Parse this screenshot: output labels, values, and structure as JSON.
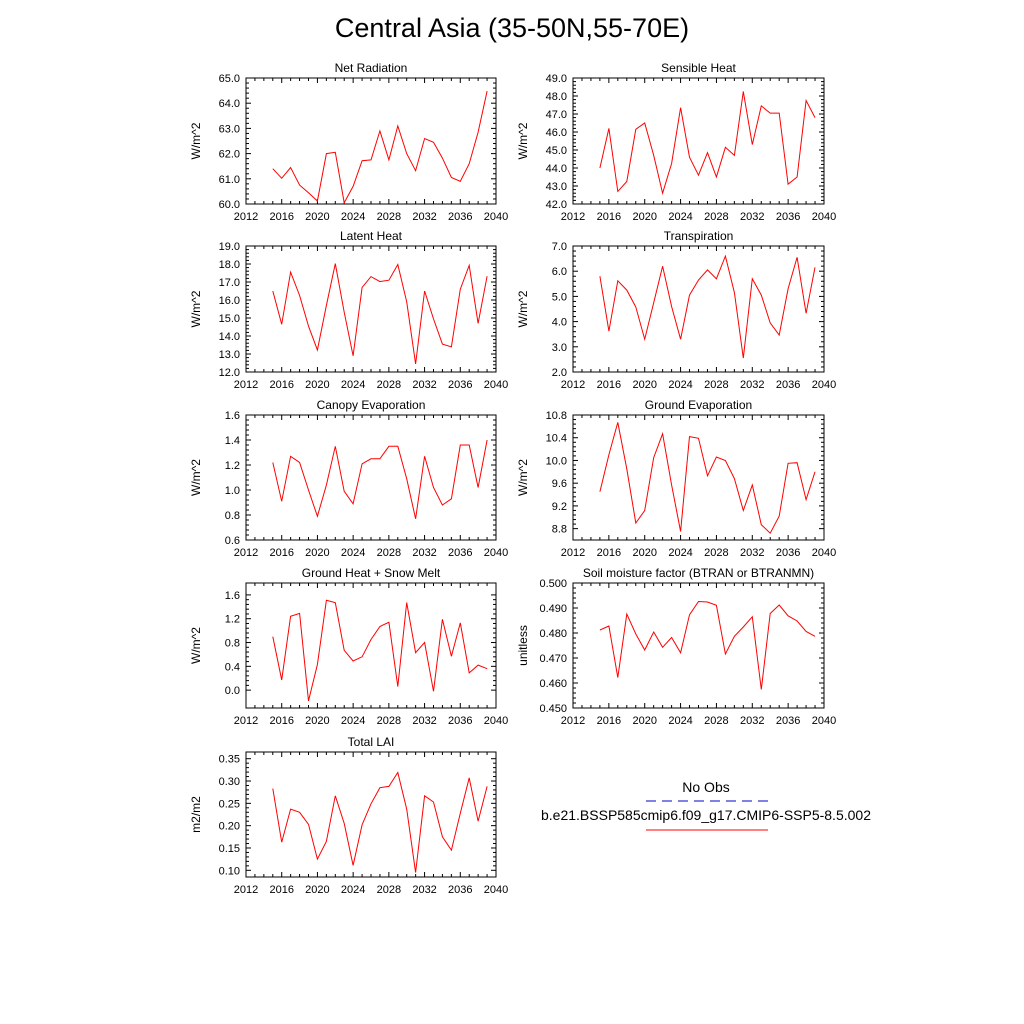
{
  "title": "Central Asia (35-50N,55-70E)",
  "colors": {
    "model_line": "#ff0000",
    "obs_line": "#0000cc",
    "axes": "#000000"
  },
  "legend": {
    "obs_label": "No Obs",
    "model_label": "b.e21.BSSP585cmip6.f09_g17.CMIP6-SSP5-8.5.002"
  },
  "chart_data": [
    {
      "type": "line",
      "title": "Net Radiation",
      "ylabel": "W/m^2",
      "xlim": [
        2012,
        2040
      ],
      "ylim": [
        60.0,
        65.0
      ],
      "xticks": [
        2012,
        2016,
        2020,
        2024,
        2028,
        2032,
        2036,
        2040
      ],
      "xtick_labels": [
        "2012",
        "2016",
        "2020",
        "2024",
        "2028",
        "2032",
        "2036",
        "2040"
      ],
      "yticks": [
        60.0,
        61.0,
        62.0,
        63.0,
        64.0,
        65.0
      ],
      "ytick_labels": [
        "60.0",
        "61.0",
        "62.0",
        "63.0",
        "64.0",
        "65.0"
      ],
      "series": [
        {
          "name": "b.e21.BSSP585cmip6.f09_g17.CMIP6-SSP5-8.5.002",
          "x": [
            2015,
            2016,
            2017,
            2018,
            2019,
            2020,
            2021,
            2022,
            2023,
            2024,
            2025,
            2026,
            2027,
            2028,
            2029,
            2030,
            2031,
            2032,
            2033,
            2034,
            2035,
            2036,
            2037,
            2038,
            2039
          ],
          "y": [
            61.4,
            61.02,
            61.45,
            60.75,
            60.45,
            60.12,
            62.0,
            62.05,
            60.05,
            60.7,
            61.72,
            61.75,
            62.9,
            61.75,
            63.1,
            62.0,
            61.32,
            62.6,
            62.45,
            61.82,
            61.05,
            60.9,
            61.6,
            62.85,
            64.48
          ]
        }
      ]
    },
    {
      "type": "line",
      "title": "Sensible Heat",
      "ylabel": "W/m^2",
      "xlim": [
        2012,
        2040
      ],
      "ylim": [
        42.0,
        49.0
      ],
      "xticks": [
        2012,
        2016,
        2020,
        2024,
        2028,
        2032,
        2036,
        2040
      ],
      "xtick_labels": [
        "2012",
        "2016",
        "2020",
        "2024",
        "2028",
        "2032",
        "2036",
        "2040"
      ],
      "yticks": [
        42.0,
        43.0,
        44.0,
        45.0,
        46.0,
        47.0,
        48.0,
        49.0
      ],
      "ytick_labels": [
        "42.0",
        "43.0",
        "44.0",
        "45.0",
        "46.0",
        "47.0",
        "48.0",
        "49.0"
      ],
      "series": [
        {
          "name": "b.e21.BSSP585cmip6.f09_g17.CMIP6-SSP5-8.5.002",
          "x": [
            2015,
            2016,
            2017,
            2018,
            2019,
            2020,
            2021,
            2022,
            2023,
            2024,
            2025,
            2026,
            2027,
            2028,
            2029,
            2030,
            2031,
            2032,
            2033,
            2034,
            2035,
            2036,
            2037,
            2038,
            2039
          ],
          "y": [
            44.0,
            46.2,
            42.7,
            43.25,
            46.15,
            46.5,
            44.7,
            42.6,
            44.25,
            47.35,
            44.6,
            43.6,
            44.85,
            43.5,
            45.15,
            44.7,
            48.25,
            45.3,
            47.45,
            47.05,
            47.05,
            43.1,
            43.5,
            47.75,
            46.8
          ]
        }
      ]
    },
    {
      "type": "line",
      "title": "Latent Heat",
      "ylabel": "W/m^2",
      "xlim": [
        2012,
        2040
      ],
      "ylim": [
        12.0,
        19.0
      ],
      "xticks": [
        2012,
        2016,
        2020,
        2024,
        2028,
        2032,
        2036,
        2040
      ],
      "xtick_labels": [
        "2012",
        "2016",
        "2020",
        "2024",
        "2028",
        "2032",
        "2036",
        "2040"
      ],
      "yticks": [
        12.0,
        13.0,
        14.0,
        15.0,
        16.0,
        17.0,
        18.0,
        19.0
      ],
      "ytick_labels": [
        "12.0",
        "13.0",
        "14.0",
        "15.0",
        "16.0",
        "17.0",
        "18.0",
        "19.0"
      ],
      "series": [
        {
          "name": "b.e21.BSSP585cmip6.f09_g17.CMIP6-SSP5-8.5.002",
          "x": [
            2015,
            2016,
            2017,
            2018,
            2019,
            2020,
            2021,
            2022,
            2023,
            2024,
            2025,
            2026,
            2027,
            2028,
            2029,
            2030,
            2031,
            2032,
            2033,
            2034,
            2035,
            2036,
            2037,
            2038,
            2039
          ],
          "y": [
            16.5,
            14.65,
            17.55,
            16.25,
            14.55,
            13.22,
            15.7,
            18.02,
            15.32,
            12.9,
            16.7,
            17.3,
            17.02,
            17.1,
            17.97,
            15.9,
            12.45,
            16.5,
            14.95,
            13.55,
            13.4,
            16.6,
            17.93,
            14.7,
            17.32
          ]
        }
      ]
    },
    {
      "type": "line",
      "title": "Transpiration",
      "ylabel": "W/m^2",
      "xlim": [
        2012,
        2040
      ],
      "ylim": [
        2.0,
        7.0
      ],
      "xticks": [
        2012,
        2016,
        2020,
        2024,
        2028,
        2032,
        2036,
        2040
      ],
      "xtick_labels": [
        "2012",
        "2016",
        "2020",
        "2024",
        "2028",
        "2032",
        "2036",
        "2040"
      ],
      "yticks": [
        2.0,
        3.0,
        4.0,
        5.0,
        6.0,
        7.0
      ],
      "ytick_labels": [
        "2.0",
        "3.0",
        "4.0",
        "5.0",
        "6.0",
        "7.0"
      ],
      "series": [
        {
          "name": "b.e21.BSSP585cmip6.f09_g17.CMIP6-SSP5-8.5.002",
          "x": [
            2015,
            2016,
            2017,
            2018,
            2019,
            2020,
            2021,
            2022,
            2023,
            2024,
            2025,
            2026,
            2027,
            2028,
            2029,
            2030,
            2031,
            2032,
            2033,
            2034,
            2035,
            2036,
            2037,
            2038,
            2039
          ],
          "y": [
            5.8,
            3.62,
            5.62,
            5.25,
            4.58,
            3.3,
            4.75,
            6.2,
            4.6,
            3.3,
            5.05,
            5.65,
            6.05,
            5.7,
            6.6,
            5.15,
            2.55,
            5.7,
            5.05,
            3.95,
            3.47,
            5.3,
            6.55,
            4.33,
            6.15
          ]
        }
      ]
    },
    {
      "type": "line",
      "title": "Canopy Evaporation",
      "ylabel": "W/m^2",
      "xlim": [
        2012,
        2040
      ],
      "ylim": [
        0.6,
        1.6
      ],
      "xticks": [
        2012,
        2016,
        2020,
        2024,
        2028,
        2032,
        2036,
        2040
      ],
      "xtick_labels": [
        "2012",
        "2016",
        "2020",
        "2024",
        "2028",
        "2032",
        "2036",
        "2040"
      ],
      "yticks": [
        0.6,
        0.8,
        1.0,
        1.2,
        1.4,
        1.6
      ],
      "ytick_labels": [
        "0.6",
        "0.8",
        "1.0",
        "1.2",
        "1.4",
        "1.6"
      ],
      "series": [
        {
          "name": "b.e21.BSSP585cmip6.f09_g17.CMIP6-SSP5-8.5.002",
          "x": [
            2015,
            2016,
            2017,
            2018,
            2019,
            2020,
            2021,
            2022,
            2023,
            2024,
            2025,
            2026,
            2027,
            2028,
            2029,
            2030,
            2031,
            2032,
            2033,
            2034,
            2035,
            2036,
            2037,
            2038,
            2039
          ],
          "y": [
            1.22,
            0.91,
            1.27,
            1.22,
            1.0,
            0.79,
            1.04,
            1.35,
            0.99,
            0.89,
            1.21,
            1.25,
            1.25,
            1.35,
            1.35,
            1.09,
            0.77,
            1.27,
            1.02,
            0.88,
            0.93,
            1.36,
            1.36,
            1.02,
            1.4
          ]
        }
      ]
    },
    {
      "type": "line",
      "title": "Ground Evaporation",
      "ylabel": "W/m^2",
      "xlim": [
        2012,
        2040
      ],
      "ylim": [
        8.6,
        10.8
      ],
      "xticks": [
        2012,
        2016,
        2020,
        2024,
        2028,
        2032,
        2036,
        2040
      ],
      "xtick_labels": [
        "2012",
        "2016",
        "2020",
        "2024",
        "2028",
        "2032",
        "2036",
        "2040"
      ],
      "yticks": [
        8.8,
        9.2,
        9.6,
        10.0,
        10.4,
        10.8
      ],
      "ytick_labels": [
        "8.8",
        "9.2",
        "9.6",
        "10.0",
        "10.4",
        "10.8"
      ],
      "series": [
        {
          "name": "b.e21.BSSP585cmip6.f09_g17.CMIP6-SSP5-8.5.002",
          "x": [
            2015,
            2016,
            2017,
            2018,
            2019,
            2020,
            2021,
            2022,
            2023,
            2024,
            2025,
            2026,
            2027,
            2028,
            2029,
            2030,
            2031,
            2032,
            2033,
            2034,
            2035,
            2036,
            2037,
            2038,
            2039
          ],
          "y": [
            9.45,
            10.1,
            10.67,
            9.85,
            8.9,
            9.12,
            10.05,
            10.47,
            9.57,
            8.75,
            10.42,
            10.39,
            9.73,
            10.06,
            10.0,
            9.68,
            9.12,
            9.57,
            8.87,
            8.72,
            9.02,
            9.95,
            9.96,
            9.31,
            9.8
          ]
        }
      ]
    },
    {
      "type": "line",
      "title": "Ground Heat + Snow Melt",
      "ylabel": "W/m^2",
      "xlim": [
        2012,
        2040
      ],
      "ylim": [
        -0.3,
        1.8
      ],
      "xticks": [
        2012,
        2016,
        2020,
        2024,
        2028,
        2032,
        2036,
        2040
      ],
      "xtick_labels": [
        "2012",
        "2016",
        "2020",
        "2024",
        "2028",
        "2032",
        "2036",
        "2040"
      ],
      "yticks": [
        0.0,
        0.4,
        0.8,
        1.2,
        1.6
      ],
      "ytick_labels": [
        "0.0",
        "0.4",
        "0.8",
        "1.2",
        "1.6"
      ],
      "series": [
        {
          "name": "b.e21.BSSP585cmip6.f09_g17.CMIP6-SSP5-8.5.002",
          "x": [
            2015,
            2016,
            2017,
            2018,
            2019,
            2020,
            2021,
            2022,
            2023,
            2024,
            2025,
            2026,
            2027,
            2028,
            2029,
            2030,
            2031,
            2032,
            2033,
            2034,
            2035,
            2036,
            2037,
            2038,
            2039
          ],
          "y": [
            0.9,
            0.17,
            1.24,
            1.29,
            -0.18,
            0.43,
            1.51,
            1.47,
            0.67,
            0.49,
            0.56,
            0.85,
            1.07,
            1.14,
            0.06,
            1.47,
            0.63,
            0.8,
            -0.02,
            1.19,
            0.57,
            1.13,
            0.29,
            0.42,
            0.36
          ]
        }
      ]
    },
    {
      "type": "line",
      "title": "Soil moisture factor (BTRAN or BTRANMN)",
      "ylabel": "unitless",
      "xlim": [
        2012,
        2040
      ],
      "ylim": [
        0.45,
        0.5
      ],
      "xticks": [
        2012,
        2016,
        2020,
        2024,
        2028,
        2032,
        2036,
        2040
      ],
      "xtick_labels": [
        "2012",
        "2016",
        "2020",
        "2024",
        "2028",
        "2032",
        "2036",
        "2040"
      ],
      "yticks": [
        0.45,
        0.46,
        0.47,
        0.48,
        0.49,
        0.5
      ],
      "ytick_labels": [
        "0.450",
        "0.460",
        "0.470",
        "0.480",
        "0.490",
        "0.500"
      ],
      "series": [
        {
          "name": "b.e21.BSSP585cmip6.f09_g17.CMIP6-SSP5-8.5.002",
          "x": [
            2015,
            2016,
            2017,
            2018,
            2019,
            2020,
            2021,
            2022,
            2023,
            2024,
            2025,
            2026,
            2027,
            2028,
            2029,
            2030,
            2031,
            2032,
            2033,
            2034,
            2035,
            2036,
            2037,
            2038,
            2039
          ],
          "y": [
            0.4812,
            0.4828,
            0.4622,
            0.4876,
            0.4796,
            0.4732,
            0.4804,
            0.4743,
            0.4782,
            0.4721,
            0.4873,
            0.4926,
            0.4924,
            0.4911,
            0.4716,
            0.4787,
            0.4824,
            0.4865,
            0.4574,
            0.4878,
            0.4912,
            0.4869,
            0.4848,
            0.4806,
            0.4787
          ]
        }
      ]
    },
    {
      "type": "line",
      "title": "Total LAI",
      "ylabel": "m2/m2",
      "xlim": [
        2012,
        2040
      ],
      "ylim": [
        0.085,
        0.365
      ],
      "xticks": [
        2012,
        2016,
        2020,
        2024,
        2028,
        2032,
        2036,
        2040
      ],
      "xtick_labels": [
        "2012",
        "2016",
        "2020",
        "2024",
        "2028",
        "2032",
        "2036",
        "2040"
      ],
      "yticks": [
        0.1,
        0.15,
        0.2,
        0.25,
        0.3,
        0.35
      ],
      "ytick_labels": [
        "0.10",
        "0.15",
        "0.20",
        "0.25",
        "0.30",
        "0.35"
      ],
      "series": [
        {
          "name": "b.e21.BSSP585cmip6.f09_g17.CMIP6-SSP5-8.5.002",
          "x": [
            2015,
            2016,
            2017,
            2018,
            2019,
            2020,
            2021,
            2022,
            2023,
            2024,
            2025,
            2026,
            2027,
            2028,
            2029,
            2030,
            2031,
            2032,
            2033,
            2034,
            2035,
            2036,
            2037,
            2038,
            2039
          ],
          "y": [
            0.283,
            0.163,
            0.237,
            0.23,
            0.203,
            0.125,
            0.165,
            0.267,
            0.205,
            0.111,
            0.202,
            0.249,
            0.285,
            0.288,
            0.319,
            0.237,
            0.095,
            0.267,
            0.253,
            0.175,
            0.145,
            0.228,
            0.307,
            0.21,
            0.288
          ]
        }
      ]
    }
  ]
}
